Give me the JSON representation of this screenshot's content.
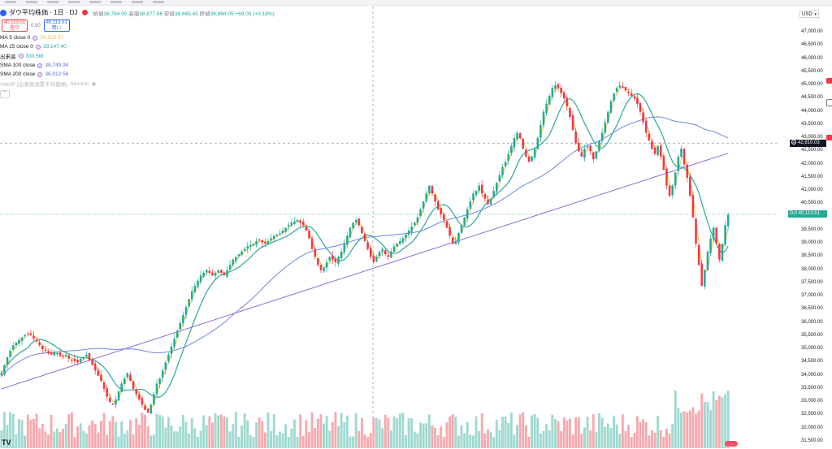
{
  "toolbar": {
    "visible_items": 8
  },
  "symbol": {
    "title": "ダウ平均株価 · 1日 · DJ",
    "open_label": "始値",
    "open": "38,784.90",
    "high_label": "高値",
    "high": "38,877.86",
    "low_label": "安値",
    "low": "38,665.45",
    "close_label": "終値",
    "close": "38,868.05",
    "change": "+69.05 (+0.18%)"
  },
  "trade": {
    "sell_price": "40,113.51",
    "sell_label": "売り",
    "spread": "0.00",
    "buy_price": "40,113.51",
    "buy_label": "買い"
  },
  "indicators": [
    {
      "label": "MA 5 close 0",
      "value": "38,816.37",
      "color": "#f6c342"
    },
    {
      "label": "MA 25 close 0",
      "value": "39,147.40",
      "color": "#2ea89a"
    },
    {
      "label": "出来高",
      "value": "330.5M",
      "color": "#22ab94"
    },
    {
      "label": "SMA 100 close",
      "value": "38,749.94",
      "color": "#5b6fd8"
    },
    {
      "label": "SMA 200 close",
      "value": "36,912.56",
      "color": "#5b6fd8"
    }
  ],
  "vwap": {
    "label": "VWAP (出来高加重平均価格)",
    "session": "Session"
  },
  "collapse_icon": "chevron-up",
  "price_axis": {
    "currency": "USD",
    "ticks": [
      "47,000.00",
      "46,500.00",
      "46,000.00",
      "45,500.00",
      "45,000.00",
      "44,500.00",
      "44,000.00",
      "43,500.00",
      "43,000.00",
      "42,500.00",
      "42,000.00",
      "41,500.00",
      "41,000.00",
      "40,500.00",
      "39,500.00",
      "39,000.00",
      "38,500.00",
      "38,000.00",
      "37,500.00",
      "37,000.00",
      "36,500.00",
      "36,000.00",
      "35,500.00",
      "35,000.00",
      "34,500.00",
      "34,000.00",
      "33,500.00",
      "33,000.00",
      "32,500.00",
      "32,000.00",
      "31,500.00"
    ],
    "crosshair_price": "42,810.03",
    "last_label": "DJI",
    "last_price": "40,113.51"
  },
  "colors": {
    "up": "#22ab94",
    "down": "#f23645",
    "ma5": "#f6c342",
    "ma25": "#2ea89a",
    "sma100": "#6e86e8",
    "sma200": "#8f6bdc"
  },
  "chart_data": {
    "type": "candlestick",
    "ylim": [
      31500,
      47000
    ],
    "closes": [
      34100,
      34400,
      34700,
      34950,
      35150,
      35250,
      35350,
      35450,
      35550,
      35600,
      35550,
      35400,
      35300,
      35150,
      35000,
      34950,
      34850,
      34800,
      34900,
      34850,
      34750,
      34700,
      34800,
      34650,
      34600,
      34550,
      34500,
      34650,
      34700,
      34800,
      34600,
      34400,
      34200,
      34000,
      33800,
      33500,
      33200,
      33000,
      32900,
      33100,
      33400,
      33700,
      33900,
      34100,
      33800,
      33500,
      33300,
      33100,
      32900,
      32700,
      32600,
      32900,
      33300,
      33700,
      33900,
      34200,
      34500,
      34800,
      35100,
      35400,
      35700,
      36000,
      36300,
      36600,
      36900,
      37200,
      37400,
      37600,
      37800,
      37900,
      38000,
      37900,
      37800,
      37900,
      38000,
      37900,
      37800,
      38000,
      38200,
      38400,
      38500,
      38600,
      38700,
      38800,
      38900,
      38950,
      39000,
      39100,
      39150,
      39050,
      39000,
      39100,
      39200,
      39300,
      39350,
      39400,
      39500,
      39600,
      39700,
      39800,
      39850,
      39900,
      39800,
      39700,
      39500,
      39200,
      38800,
      38500,
      38200,
      38000,
      38100,
      38300,
      38500,
      38400,
      38300,
      38500,
      38700,
      39000,
      39300,
      39600,
      39800,
      39900,
      39700,
      39400,
      39100,
      38800,
      38500,
      38300,
      38500,
      38700,
      38800,
      38600,
      38500,
      38700,
      38900,
      39000,
      39100,
      39200,
      39350,
      39500,
      39650,
      39800,
      40000,
      40300,
      40600,
      40900,
      41200,
      40900,
      40600,
      40300,
      40100,
      39900,
      39600,
      39300,
      39000,
      39100,
      39400,
      39700,
      40000,
      40300,
      40600,
      40900,
      41000,
      41200,
      40900,
      40700,
      40500,
      40700,
      41000,
      41300,
      41600,
      41900,
      42100,
      42400,
      42700,
      43000,
      43200,
      43000,
      42600,
      42300,
      42100,
      42300,
      42600,
      43000,
      43500,
      44000,
      44300,
      44600,
      44900,
      45000,
      44900,
      44700,
      44500,
      44200,
      43800,
      43300,
      42800,
      42500,
      42300,
      42600,
      42700,
      42500,
      42200,
      42500,
      42900,
      43200,
      43600,
      44000,
      44400,
      44700,
      44900,
      45000,
      44900,
      44800,
      44700,
      44600,
      44500,
      44300,
      44000,
      43600,
      43200,
      42900,
      42600,
      42400,
      42700,
      42300,
      41800,
      41200,
      40800,
      41200,
      41700,
      42300,
      42600,
      42000,
      41500,
      40800,
      40000,
      39000,
      38200,
      37400,
      38000,
      38700,
      39200,
      39600,
      39000,
      38400,
      39000,
      39700,
      40100
    ]
  }
}
